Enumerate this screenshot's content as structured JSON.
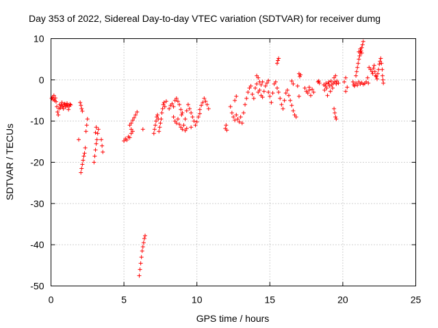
{
  "chart_data": {
    "type": "scatter",
    "title": "Day 353 of 2022, Sidereal Day-to-day VTEC variation (SDTVAR) for receiver dumg",
    "xlabel": "GPS time / hours",
    "ylabel": "SDTVAR / TECUs",
    "xlim": [
      0,
      25
    ],
    "ylim": [
      -50,
      10
    ],
    "xticks": [
      0,
      5,
      10,
      15,
      20,
      25
    ],
    "yticks": [
      -50,
      -40,
      -30,
      -20,
      -10,
      0,
      10
    ],
    "xtick_labels": [
      "0",
      "5",
      "10",
      "15",
      "20",
      "25"
    ],
    "ytick_labels": [
      "-50",
      "-40",
      "-30",
      "-20",
      "-10",
      "0",
      "10"
    ],
    "grid": true,
    "marker": "+",
    "color": "#ff0000",
    "series": [
      {
        "name": "SDTVAR",
        "points": [
          [
            0.05,
            -4.5
          ],
          [
            0.1,
            -4.2
          ],
          [
            0.15,
            -4.8
          ],
          [
            0.2,
            -3.8
          ],
          [
            0.25,
            -5.0
          ],
          [
            0.3,
            -4.4
          ],
          [
            0.35,
            -5.3
          ],
          [
            0.4,
            -6.5
          ],
          [
            0.45,
            -7.8
          ],
          [
            0.5,
            -8.5
          ],
          [
            0.55,
            -7.0
          ],
          [
            0.6,
            -6.0
          ],
          [
            0.65,
            -6.8
          ],
          [
            0.7,
            -6.2
          ],
          [
            0.75,
            -5.5
          ],
          [
            0.8,
            -6.4
          ],
          [
            0.85,
            -7.0
          ],
          [
            0.9,
            -6.0
          ],
          [
            0.95,
            -5.8
          ],
          [
            1.0,
            -6.6
          ],
          [
            1.05,
            -6.2
          ],
          [
            1.1,
            -5.7
          ],
          [
            1.15,
            -6.3
          ],
          [
            1.2,
            -7.2
          ],
          [
            1.25,
            -6.4
          ],
          [
            1.3,
            -5.9
          ],
          [
            1.35,
            -6.1
          ],
          [
            1.9,
            -14.5
          ],
          [
            2.0,
            -5.5
          ],
          [
            2.05,
            -6.2
          ],
          [
            2.1,
            -7.0
          ],
          [
            2.15,
            -7.6
          ],
          [
            2.05,
            -22.5
          ],
          [
            2.1,
            -21.5
          ],
          [
            2.15,
            -20.5
          ],
          [
            2.2,
            -19.5
          ],
          [
            2.25,
            -18.5
          ],
          [
            2.3,
            -17.8
          ],
          [
            2.35,
            -16.5
          ],
          [
            2.4,
            -12.5
          ],
          [
            2.45,
            -11.0
          ],
          [
            2.5,
            -9.5
          ],
          [
            2.95,
            -20.0
          ],
          [
            3.0,
            -18.5
          ],
          [
            3.05,
            -17.0
          ],
          [
            3.1,
            -15.5
          ],
          [
            3.15,
            -14.5
          ],
          [
            3.2,
            -13.0
          ],
          [
            3.25,
            -12.0
          ],
          [
            3.05,
            -12.8
          ],
          [
            3.1,
            -11.5
          ],
          [
            3.45,
            -14.5
          ],
          [
            3.5,
            -16.0
          ],
          [
            3.55,
            -17.5
          ],
          [
            5.0,
            -14.8
          ],
          [
            5.1,
            -14.3
          ],
          [
            5.2,
            -14.6
          ],
          [
            5.3,
            -13.8
          ],
          [
            5.4,
            -14.0
          ],
          [
            5.5,
            -13.0
          ],
          [
            5.6,
            -12.5
          ],
          [
            5.4,
            -11.0
          ],
          [
            5.5,
            -10.5
          ],
          [
            5.6,
            -9.8
          ],
          [
            5.7,
            -9.2
          ],
          [
            5.8,
            -8.5
          ],
          [
            5.9,
            -7.8
          ],
          [
            5.5,
            -12.0
          ],
          [
            6.3,
            -12.0
          ],
          [
            6.05,
            -47.5
          ],
          [
            6.1,
            -46.0
          ],
          [
            6.15,
            -44.5
          ],
          [
            6.2,
            -43.0
          ],
          [
            6.25,
            -41.5
          ],
          [
            6.3,
            -40.5
          ],
          [
            6.35,
            -39.5
          ],
          [
            6.4,
            -38.5
          ],
          [
            6.45,
            -37.8
          ],
          [
            7.05,
            -13.0
          ],
          [
            7.1,
            -12.0
          ],
          [
            7.15,
            -11.0
          ],
          [
            7.2,
            -10.0
          ],
          [
            7.25,
            -9.0
          ],
          [
            7.3,
            -8.5
          ],
          [
            7.35,
            -9.5
          ],
          [
            7.4,
            -12.5
          ],
          [
            7.45,
            -11.5
          ],
          [
            7.5,
            -10.5
          ],
          [
            7.55,
            -9.5
          ],
          [
            7.6,
            -8.0
          ],
          [
            7.65,
            -7.0
          ],
          [
            7.7,
            -6.0
          ],
          [
            7.75,
            -5.5
          ],
          [
            7.8,
            -6.5
          ],
          [
            7.9,
            -5.2
          ],
          [
            8.1,
            -7.0
          ],
          [
            8.2,
            -6.2
          ],
          [
            8.3,
            -5.8
          ],
          [
            8.4,
            -6.5
          ],
          [
            8.5,
            -5.0
          ],
          [
            8.6,
            -4.5
          ],
          [
            8.7,
            -5.2
          ],
          [
            8.8,
            -6.0
          ],
          [
            8.9,
            -7.2
          ],
          [
            9.0,
            -8.0
          ],
          [
            8.4,
            -9.0
          ],
          [
            8.5,
            -10.0
          ],
          [
            8.6,
            -10.5
          ],
          [
            8.7,
            -9.5
          ],
          [
            8.8,
            -10.8
          ],
          [
            8.9,
            -11.5
          ],
          [
            9.0,
            -12.0
          ],
          [
            9.1,
            -11.0
          ],
          [
            9.2,
            -12.3
          ],
          [
            9.3,
            -11.8
          ],
          [
            9.3,
            -7.5
          ],
          [
            9.4,
            -6.0
          ],
          [
            9.5,
            -7.0
          ],
          [
            9.6,
            -8.0
          ],
          [
            9.7,
            -9.0
          ],
          [
            9.8,
            -10.0
          ],
          [
            9.9,
            -11.0
          ],
          [
            10.0,
            -10.2
          ],
          [
            10.1,
            -9.0
          ],
          [
            10.2,
            -8.2
          ],
          [
            10.2,
            -7.2
          ],
          [
            10.3,
            -6.2
          ],
          [
            10.4,
            -5.5
          ],
          [
            10.5,
            -4.5
          ],
          [
            10.6,
            -5.2
          ],
          [
            10.7,
            -6.0
          ],
          [
            10.8,
            -7.0
          ],
          [
            9.6,
            -11.5
          ],
          [
            9.2,
            -9.5
          ],
          [
            8.95,
            -8.5
          ],
          [
            11.95,
            -11.8
          ],
          [
            12.0,
            -11.0
          ],
          [
            12.05,
            -12.2
          ],
          [
            12.3,
            -6.5
          ],
          [
            12.4,
            -8.0
          ],
          [
            12.5,
            -9.0
          ],
          [
            12.6,
            -9.8
          ],
          [
            12.7,
            -8.5
          ],
          [
            12.8,
            -9.5
          ],
          [
            12.9,
            -10.2
          ],
          [
            13.0,
            -9.0
          ],
          [
            13.1,
            -10.5
          ],
          [
            13.2,
            -8.0
          ],
          [
            12.7,
            -4.0
          ],
          [
            12.6,
            -5.0
          ],
          [
            13.3,
            -6.0
          ],
          [
            13.4,
            -4.5
          ],
          [
            13.5,
            -3.0
          ],
          [
            13.6,
            -2.0
          ],
          [
            13.7,
            -1.5
          ],
          [
            13.8,
            -3.5
          ],
          [
            13.9,
            -4.5
          ],
          [
            14.0,
            -2.0
          ],
          [
            14.1,
            -1.0
          ],
          [
            14.2,
            -3.0
          ],
          [
            14.3,
            -2.5
          ],
          [
            14.4,
            -3.8
          ],
          [
            14.5,
            -4.2
          ],
          [
            14.6,
            -2.8
          ],
          [
            14.7,
            -1.5
          ],
          [
            14.8,
            -0.8
          ],
          [
            14.9,
            -3.0
          ],
          [
            15.0,
            -4.0
          ],
          [
            15.1,
            -5.5
          ],
          [
            15.2,
            -3.2
          ],
          [
            14.3,
            -0.5
          ],
          [
            14.4,
            -1.2
          ],
          [
            14.5,
            -0.5
          ],
          [
            14.1,
            1.0
          ],
          [
            14.2,
            0.5
          ],
          [
            14.9,
            -0.2
          ],
          [
            15.3,
            -1.0
          ],
          [
            15.4,
            -0.5
          ],
          [
            15.5,
            -2.0
          ],
          [
            15.5,
            4.0
          ],
          [
            15.55,
            4.7
          ],
          [
            15.6,
            5.2
          ],
          [
            15.6,
            -3.0
          ],
          [
            15.7,
            -4.5
          ],
          [
            15.8,
            -6.0
          ],
          [
            15.9,
            -7.0
          ],
          [
            16.0,
            -5.0
          ],
          [
            16.1,
            -3.2
          ],
          [
            16.2,
            -2.5
          ],
          [
            16.3,
            -3.8
          ],
          [
            16.4,
            -5.0
          ],
          [
            16.5,
            -6.2
          ],
          [
            16.6,
            -7.5
          ],
          [
            16.7,
            -8.5
          ],
          [
            16.8,
            -9.0
          ],
          [
            16.6,
            -1.0
          ],
          [
            16.5,
            -0.3
          ],
          [
            16.9,
            -1.5
          ],
          [
            17.0,
            1.5
          ],
          [
            17.05,
            0.8
          ],
          [
            17.1,
            1.2
          ],
          [
            17.0,
            -4.0
          ],
          [
            17.4,
            -2.0
          ],
          [
            17.5,
            -2.8
          ],
          [
            17.6,
            -3.2
          ],
          [
            17.7,
            -2.5
          ],
          [
            17.8,
            -3.8
          ],
          [
            17.9,
            -2.3
          ],
          [
            18.0,
            -3.0
          ],
          [
            17.7,
            -1.8
          ],
          [
            18.3,
            -0.5
          ],
          [
            18.35,
            -0.3
          ],
          [
            18.4,
            -0.8
          ],
          [
            18.75,
            -2.5
          ],
          [
            18.8,
            -1.5
          ],
          [
            18.85,
            -0.8
          ],
          [
            18.9,
            -2.0
          ],
          [
            18.95,
            -3.8
          ],
          [
            19.0,
            -1.0
          ],
          [
            19.05,
            -0.5
          ],
          [
            19.1,
            -1.5
          ],
          [
            19.15,
            -2.8
          ],
          [
            19.2,
            -0.3
          ],
          [
            19.25,
            -1.2
          ],
          [
            19.3,
            -2.0
          ],
          [
            19.35,
            -0.8
          ],
          [
            19.4,
            0.5
          ],
          [
            19.45,
            -0.5
          ],
          [
            19.5,
            1.0
          ],
          [
            19.55,
            -1.0
          ],
          [
            19.6,
            -0.3
          ],
          [
            18.7,
            -1.2
          ],
          [
            19.7,
            -0.8
          ],
          [
            19.4,
            -7.0
          ],
          [
            19.45,
            -8.0
          ],
          [
            19.5,
            -9.0
          ],
          [
            19.55,
            -9.5
          ],
          [
            20.1,
            -0.5
          ],
          [
            20.2,
            0.5
          ],
          [
            20.3,
            -1.8
          ],
          [
            20.2,
            -2.8
          ],
          [
            20.7,
            -0.5
          ],
          [
            20.75,
            -1.2
          ],
          [
            20.8,
            -1.5
          ],
          [
            20.9,
            -0.8
          ],
          [
            21.0,
            -1.3
          ],
          [
            21.1,
            -0.5
          ],
          [
            21.2,
            -1.0
          ],
          [
            21.3,
            -0.7
          ],
          [
            21.4,
            -1.1
          ],
          [
            21.5,
            -0.9
          ],
          [
            20.9,
            1.0
          ],
          [
            20.95,
            2.0
          ],
          [
            21.0,
            3.0
          ],
          [
            21.05,
            4.0
          ],
          [
            21.1,
            5.0
          ],
          [
            21.15,
            5.8
          ],
          [
            21.2,
            6.5
          ],
          [
            21.25,
            7.0
          ],
          [
            21.3,
            7.8
          ],
          [
            21.35,
            8.5
          ],
          [
            21.4,
            9.3
          ],
          [
            21.2,
            7.5
          ],
          [
            21.1,
            6.8
          ],
          [
            21.3,
            6.5
          ],
          [
            21.6,
            -0.5
          ],
          [
            21.7,
            0.5
          ],
          [
            21.75,
            -0.8
          ],
          [
            21.8,
            3.0
          ],
          [
            21.9,
            2.5
          ],
          [
            22.0,
            2.0
          ],
          [
            22.05,
            1.5
          ],
          [
            22.1,
            2.8
          ],
          [
            22.15,
            3.5
          ],
          [
            22.2,
            2.0
          ],
          [
            22.25,
            1.0
          ],
          [
            22.3,
            0.8
          ],
          [
            22.35,
            0.2
          ],
          [
            22.4,
            1.5
          ],
          [
            22.45,
            2.5
          ],
          [
            22.5,
            3.8
          ],
          [
            22.55,
            4.5
          ],
          [
            22.6,
            5.2
          ],
          [
            22.65,
            4.0
          ],
          [
            22.7,
            2.5
          ],
          [
            22.72,
            1.0
          ],
          [
            22.75,
            0.0
          ],
          [
            22.78,
            -0.8
          ]
        ]
      }
    ]
  }
}
